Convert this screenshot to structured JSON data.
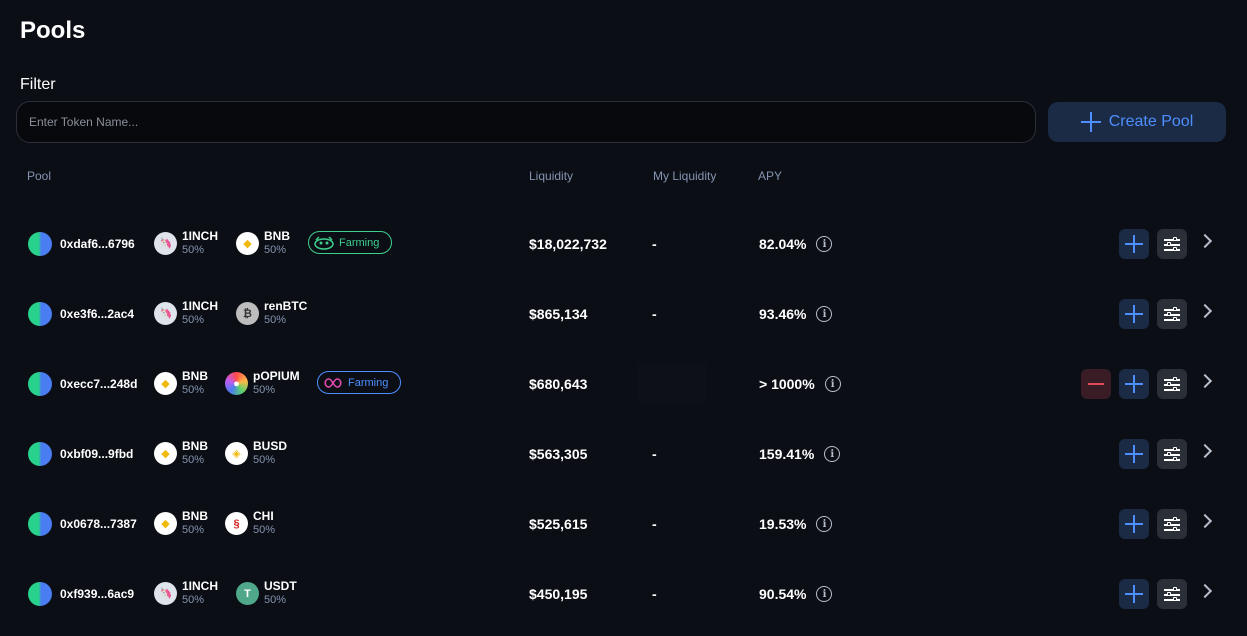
{
  "page": {
    "title": "Pools"
  },
  "filter": {
    "label": "Filter",
    "placeholder": "Enter Token Name..."
  },
  "actions": {
    "create_pool": "Create Pool"
  },
  "columns": {
    "pool": "Pool",
    "liquidity": "Liquidity",
    "my_liquidity": "My Liquidity",
    "apy": "APY"
  },
  "rows": [
    {
      "address": "0xdaf6...6796",
      "tokens": [
        {
          "symbol": "1INCH",
          "weight": "50%",
          "icon": "1inch-icon"
        },
        {
          "symbol": "BNB",
          "weight": "50%",
          "icon": "bnb-icon"
        }
      ],
      "farming": "Farming",
      "farming_style": "green",
      "liquidity": "$18,022,732",
      "my_liquidity": "-",
      "apy": "82.04%"
    },
    {
      "address": "0xe3f6...2ac4",
      "tokens": [
        {
          "symbol": "1INCH",
          "weight": "50%",
          "icon": "1inch-icon"
        },
        {
          "symbol": "renBTC",
          "weight": "50%",
          "icon": "renbtc-icon"
        }
      ],
      "liquidity": "$865,134",
      "my_liquidity": "-",
      "apy": "93.46%"
    },
    {
      "address": "0xecc7...248d",
      "tokens": [
        {
          "symbol": "BNB",
          "weight": "50%",
          "icon": "bnb-icon"
        },
        {
          "symbol": "pOPIUM",
          "weight": "50%",
          "icon": "popium-icon"
        }
      ],
      "farming": "Farming",
      "farming_style": "blue",
      "liquidity": "$680,643",
      "my_liquidity": "",
      "apy": "> 1000%"
    },
    {
      "address": "0xbf09...9fbd",
      "tokens": [
        {
          "symbol": "BNB",
          "weight": "50%",
          "icon": "bnb-icon"
        },
        {
          "symbol": "BUSD",
          "weight": "50%",
          "icon": "busd-icon"
        }
      ],
      "liquidity": "$563,305",
      "my_liquidity": "-",
      "apy": "159.41%"
    },
    {
      "address": "0x0678...7387",
      "tokens": [
        {
          "symbol": "BNB",
          "weight": "50%",
          "icon": "bnb-icon"
        },
        {
          "symbol": "CHI",
          "weight": "50%",
          "icon": "chi-icon"
        }
      ],
      "liquidity": "$525,615",
      "my_liquidity": "-",
      "apy": "19.53%"
    },
    {
      "address": "0xf939...6ac9",
      "tokens": [
        {
          "symbol": "1INCH",
          "weight": "50%",
          "icon": "1inch-icon"
        },
        {
          "symbol": "USDT",
          "weight": "50%",
          "icon": "usdt-icon"
        }
      ],
      "liquidity": "$450,195",
      "my_liquidity": "-",
      "apy": "90.54%"
    }
  ],
  "colors": {
    "background": "#0b0e15",
    "accent": "#4d8fff",
    "farming_green": "#3ccf8e",
    "remove_red": "#e34b5c"
  }
}
